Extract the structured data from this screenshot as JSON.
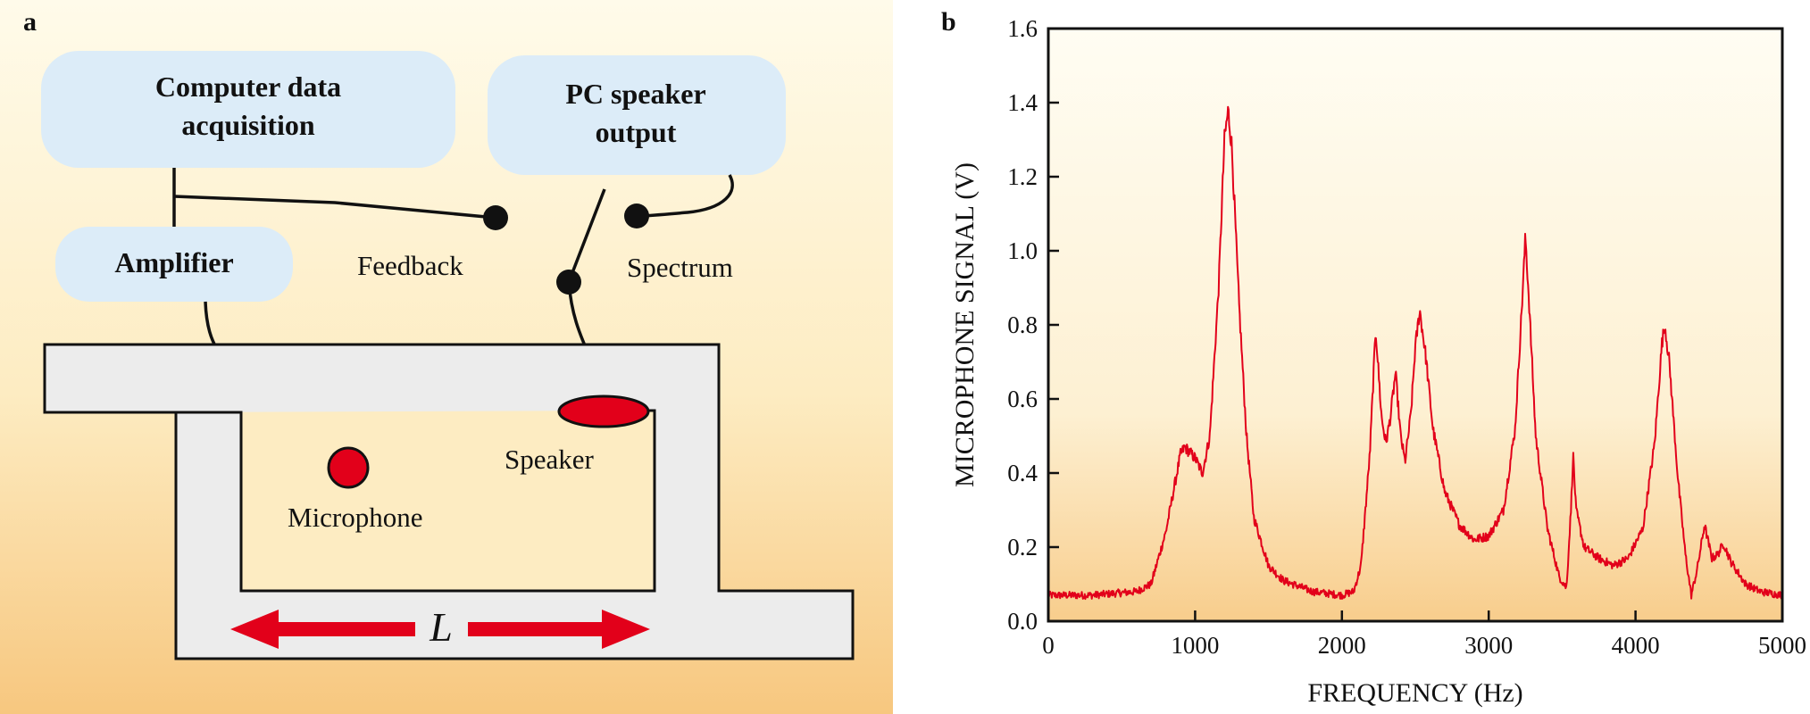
{
  "panel_a": {
    "letter": "a",
    "boxes": {
      "computer": [
        "Computer data",
        "acquisition"
      ],
      "pc_speaker": [
        "PC speaker",
        "output"
      ],
      "amplifier": "Amplifier"
    },
    "labels": {
      "feedback": "Feedback",
      "spectrum": "Spectrum",
      "speaker": "Speaker",
      "microphone": "Microphone",
      "length": "L"
    },
    "colors": {
      "box_fill": "#dcecf8",
      "pipe_fill": "#ececec",
      "accent_red": "#e2001a"
    }
  },
  "panel_b": {
    "letter": "b"
  },
  "chart_data": {
    "type": "line",
    "xlabel": "FREQUENCY (Hz)",
    "ylabel": "MICROPHONE SIGNAL (V)",
    "xlim": [
      0,
      5000
    ],
    "ylim": [
      0,
      1.6
    ],
    "xticks": [
      0,
      1000,
      2000,
      3000,
      4000,
      5000
    ],
    "yticks": [
      "0.0",
      "0.2",
      "0.4",
      "0.6",
      "0.8",
      "1.0",
      "1.2",
      "1.4",
      "1.6"
    ],
    "series": [
      {
        "name": "microphone signal",
        "color": "#e2001a",
        "peaks": [
          {
            "freq": 930,
            "height": 0.47
          },
          {
            "freq": 1225,
            "height": 1.38
          },
          {
            "freq": 2230,
            "height": 0.79
          },
          {
            "freq": 2365,
            "height": 0.67
          },
          {
            "freq": 2530,
            "height": 0.84
          },
          {
            "freq": 3250,
            "height": 1.04
          },
          {
            "freq": 3575,
            "height": 0.45
          },
          {
            "freq": 4200,
            "height": 0.8
          },
          {
            "freq": 4470,
            "height": 0.26
          },
          {
            "freq": 4600,
            "height": 0.21
          }
        ],
        "points": [
          [
            0,
            0.07
          ],
          [
            300,
            0.07
          ],
          [
            600,
            0.08
          ],
          [
            700,
            0.1
          ],
          [
            800,
            0.24
          ],
          [
            900,
            0.45
          ],
          [
            930,
            0.47
          ],
          [
            1000,
            0.44
          ],
          [
            1050,
            0.4
          ],
          [
            1100,
            0.5
          ],
          [
            1160,
            0.9
          ],
          [
            1200,
            1.3
          ],
          [
            1225,
            1.38
          ],
          [
            1250,
            1.28
          ],
          [
            1300,
            0.85
          ],
          [
            1350,
            0.5
          ],
          [
            1400,
            0.28
          ],
          [
            1500,
            0.15
          ],
          [
            1600,
            0.11
          ],
          [
            1800,
            0.08
          ],
          [
            2000,
            0.07
          ],
          [
            2080,
            0.08
          ],
          [
            2130,
            0.15
          ],
          [
            2190,
            0.45
          ],
          [
            2230,
            0.79
          ],
          [
            2270,
            0.55
          ],
          [
            2300,
            0.48
          ],
          [
            2330,
            0.55
          ],
          [
            2365,
            0.67
          ],
          [
            2400,
            0.5
          ],
          [
            2430,
            0.43
          ],
          [
            2470,
            0.56
          ],
          [
            2500,
            0.74
          ],
          [
            2530,
            0.84
          ],
          [
            2570,
            0.72
          ],
          [
            2620,
            0.52
          ],
          [
            2700,
            0.35
          ],
          [
            2800,
            0.26
          ],
          [
            2900,
            0.22
          ],
          [
            3000,
            0.23
          ],
          [
            3100,
            0.3
          ],
          [
            3180,
            0.52
          ],
          [
            3230,
            0.88
          ],
          [
            3250,
            1.04
          ],
          [
            3275,
            0.86
          ],
          [
            3320,
            0.5
          ],
          [
            3400,
            0.25
          ],
          [
            3480,
            0.12
          ],
          [
            3530,
            0.09
          ],
          [
            3560,
            0.3
          ],
          [
            3575,
            0.45
          ],
          [
            3595,
            0.3
          ],
          [
            3650,
            0.2
          ],
          [
            3750,
            0.17
          ],
          [
            3850,
            0.15
          ],
          [
            3950,
            0.17
          ],
          [
            4050,
            0.25
          ],
          [
            4130,
            0.48
          ],
          [
            4180,
            0.75
          ],
          [
            4200,
            0.8
          ],
          [
            4230,
            0.7
          ],
          [
            4290,
            0.38
          ],
          [
            4340,
            0.18
          ],
          [
            4380,
            0.07
          ],
          [
            4420,
            0.14
          ],
          [
            4470,
            0.26
          ],
          [
            4520,
            0.17
          ],
          [
            4560,
            0.18
          ],
          [
            4600,
            0.21
          ],
          [
            4650,
            0.16
          ],
          [
            4750,
            0.1
          ],
          [
            4850,
            0.08
          ],
          [
            5000,
            0.07
          ]
        ]
      }
    ]
  }
}
